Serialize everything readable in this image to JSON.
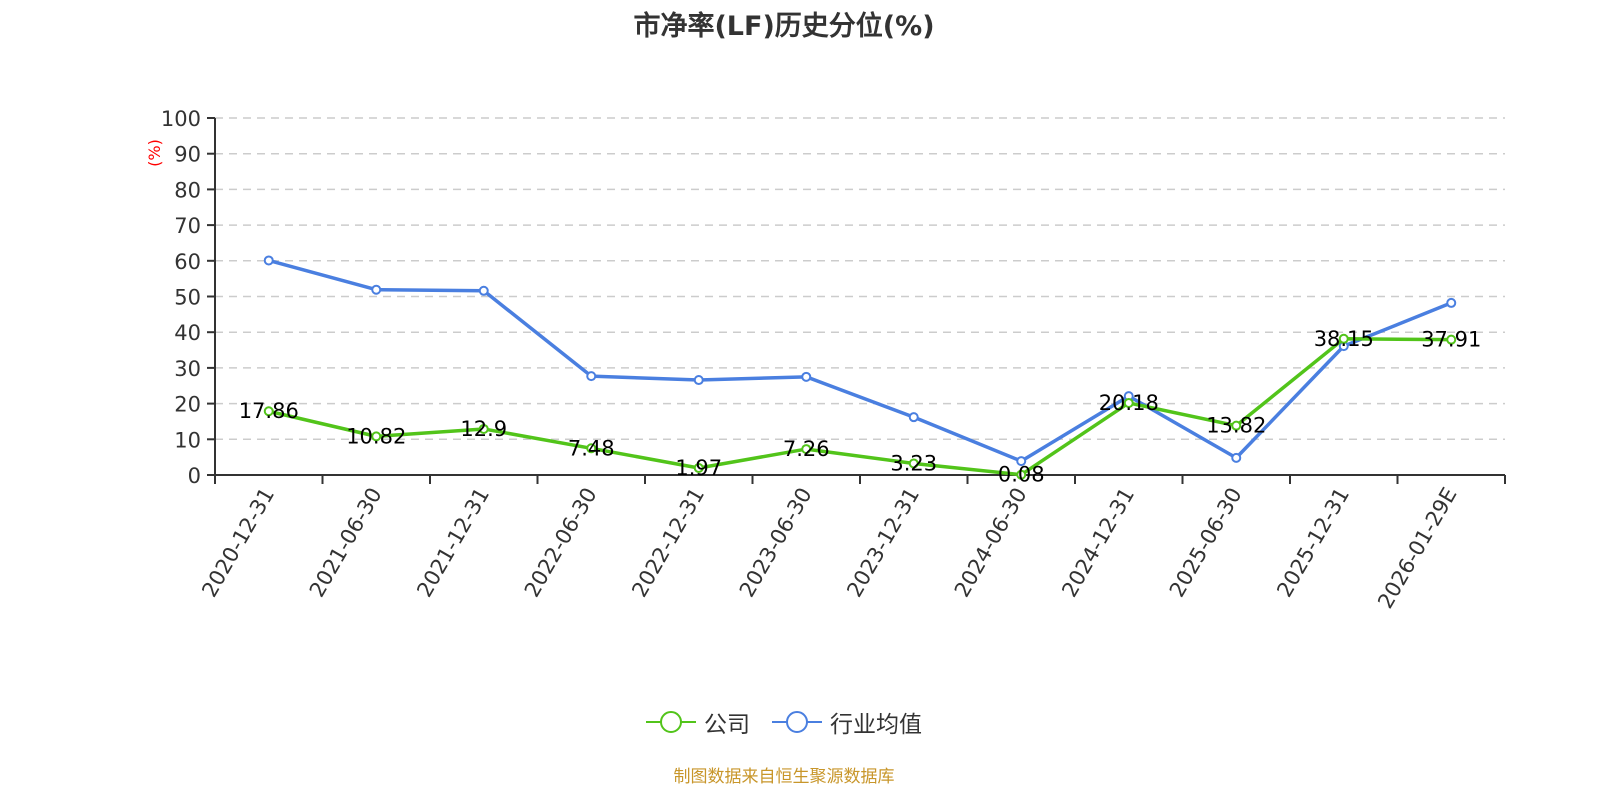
{
  "title": "市净率(LF)历史分位(%)",
  "source_note": "制图数据来自恒生聚源数据库",
  "legend": [
    {
      "label": "公司",
      "color": "#52c41a"
    },
    {
      "label": "行业均值",
      "color": "#4a7fe0"
    }
  ],
  "y_axis": {
    "unit_label": "(%)",
    "unit_color": "#ff0000",
    "ticks": [
      "0",
      "10",
      "20",
      "30",
      "40",
      "50",
      "60",
      "70",
      "80",
      "90",
      "100"
    ]
  },
  "chart_data": {
    "type": "line",
    "title": "市净率(LF)历史分位(%)",
    "xlabel": "",
    "ylabel": "(%)",
    "ylim": [
      0,
      100
    ],
    "grid": true,
    "legend_position": "bottom",
    "categories": [
      "2020-12-31",
      "2021-06-30",
      "2021-12-31",
      "2022-06-30",
      "2022-12-31",
      "2023-06-30",
      "2023-12-31",
      "2024-06-30",
      "2024-12-31",
      "2025-06-30",
      "2025-12-31",
      "2026-01-29E"
    ],
    "series": [
      {
        "name": "公司",
        "color": "#52c41a",
        "values": [
          17.86,
          10.82,
          12.9,
          7.48,
          1.97,
          7.26,
          3.23,
          0.08,
          20.18,
          13.82,
          38.15,
          37.91
        ],
        "labels_shown": true
      },
      {
        "name": "行业均值",
        "color": "#4a7fe0",
        "values": [
          60.1,
          51.9,
          51.6,
          27.7,
          26.6,
          27.5,
          16.2,
          3.9,
          22.1,
          4.8,
          36.1,
          48.2
        ],
        "labels_shown": false
      }
    ]
  }
}
